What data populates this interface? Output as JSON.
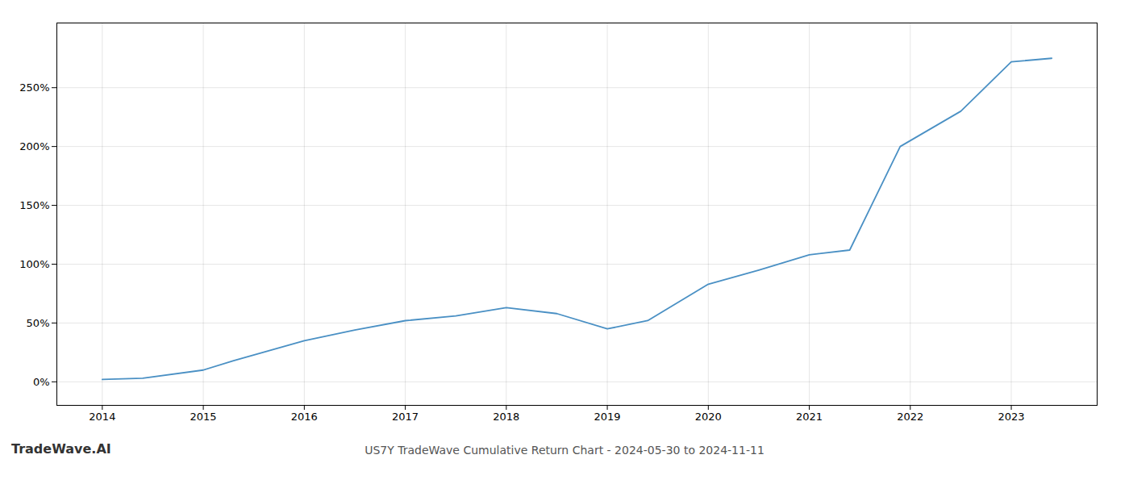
{
  "chart_data": {
    "type": "line",
    "title": "US7Y TradeWave Cumulative Return Chart - 2024-05-30 to 2024-11-11",
    "annotations": [
      "TradeWave.AI"
    ],
    "x": [
      2014.0,
      2014.4,
      2015.0,
      2015.3,
      2016.0,
      2016.5,
      2017.0,
      2017.5,
      2018.0,
      2018.5,
      2019.0,
      2019.4,
      2020.0,
      2020.5,
      2021.0,
      2021.4,
      2021.9,
      2022.5,
      2023.0,
      2023.4
    ],
    "values": [
      2,
      3,
      10,
      18,
      35,
      44,
      52,
      56,
      63,
      58,
      45,
      52,
      83,
      95,
      108,
      112,
      200,
      230,
      272,
      275
    ],
    "color": "#4a90c4",
    "xlim": [
      2013.55,
      2023.85
    ],
    "xticks": [
      2014,
      2015,
      2016,
      2017,
      2018,
      2019,
      2020,
      2021,
      2022,
      2023
    ],
    "ylim": [
      -20,
      305
    ],
    "yticks": [
      {
        "value": 0,
        "label": "0%"
      },
      {
        "value": 50,
        "label": "50%"
      },
      {
        "value": 100,
        "label": "100%"
      },
      {
        "value": 150,
        "label": "150%"
      },
      {
        "value": 200,
        "label": "200%"
      },
      {
        "value": 250,
        "label": "250%"
      }
    ],
    "grid": true
  }
}
